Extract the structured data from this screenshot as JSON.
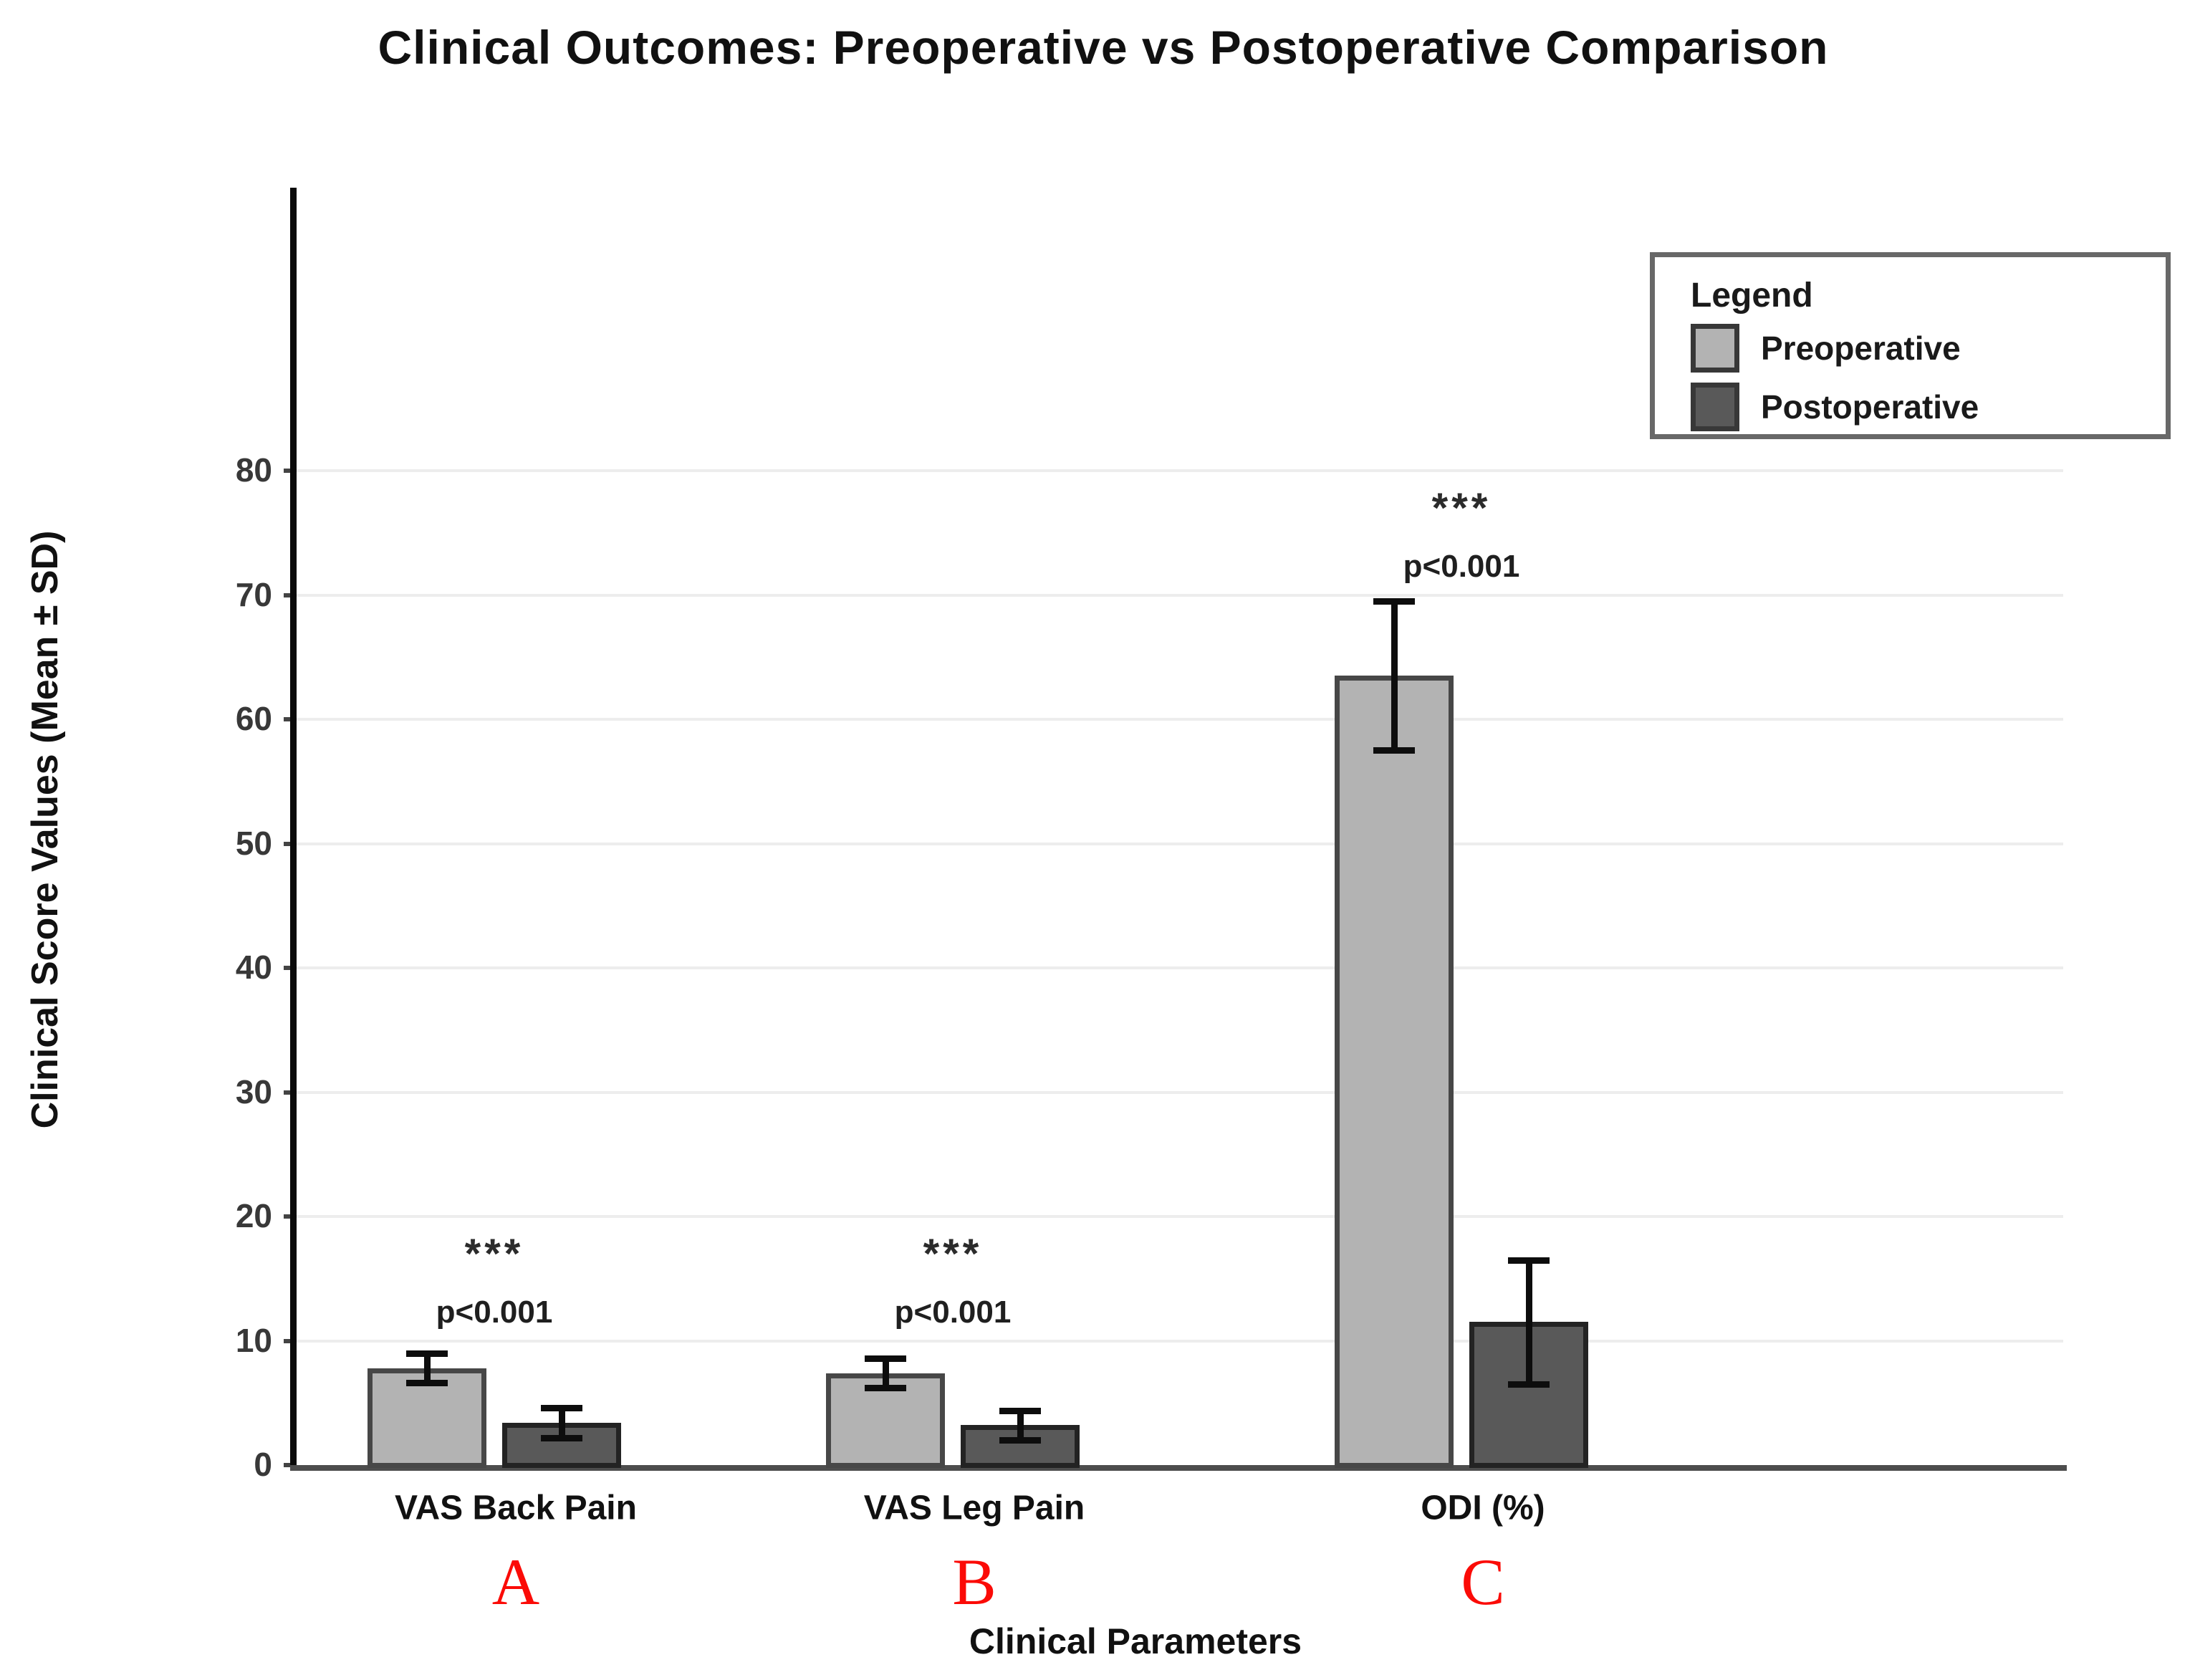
{
  "page": {
    "background": "#ffffff"
  },
  "chart": {
    "title": "Clinical Outcomes: Preoperative vs Postoperative Comparison",
    "y_axis_title": "Clinical Score Values (Mean ± SD)",
    "x_axis_title": "Clinical Parameters",
    "legend": {
      "title": "Legend"
    }
  },
  "chart_data": {
    "type": "bar",
    "title": "Clinical Outcomes: Preoperative vs Postoperative Comparison",
    "xlabel": "Clinical Parameters",
    "ylabel": "Clinical Score Values (Mean ± SD)",
    "categories": [
      "VAS Back Pain",
      "VAS Leg Pain",
      "ODI (%)"
    ],
    "panel_labels": [
      "A",
      "B",
      "C"
    ],
    "series": [
      {
        "name": "Preoperative",
        "color": "#b3b3b3",
        "border_color": "#474747",
        "values": [
          7.8,
          7.4,
          63.5
        ],
        "sd": [
          1.2,
          1.2,
          6.0
        ]
      },
      {
        "name": "Postoperative",
        "color": "#595959",
        "border_color": "#232323",
        "values": [
          3.4,
          3.2,
          11.5
        ],
        "sd": [
          1.2,
          1.2,
          5.0
        ]
      }
    ],
    "error_bars": "±SD",
    "significance": [
      {
        "stars": "***",
        "p_text": "p<0.001",
        "stars_y": 17.3,
        "p_y": 12.3
      },
      {
        "stars": "***",
        "p_text": "p<0.001",
        "stars_y": 17.3,
        "p_y": 12.3
      },
      {
        "stars": "***",
        "p_text": "p<0.001",
        "stars_y": 77.3,
        "p_y": 72.3
      }
    ],
    "ylim": [
      0,
      103
    ],
    "yticks": [
      0,
      10,
      20,
      30,
      40,
      50,
      60,
      70,
      80
    ],
    "grid": true,
    "grid_color": "#ededed",
    "legend_position": "top-right",
    "panel_letter_color": "#fb0b07",
    "axis_color_y": "#0a0a0a",
    "axis_color_x": "#4d4d4d"
  }
}
